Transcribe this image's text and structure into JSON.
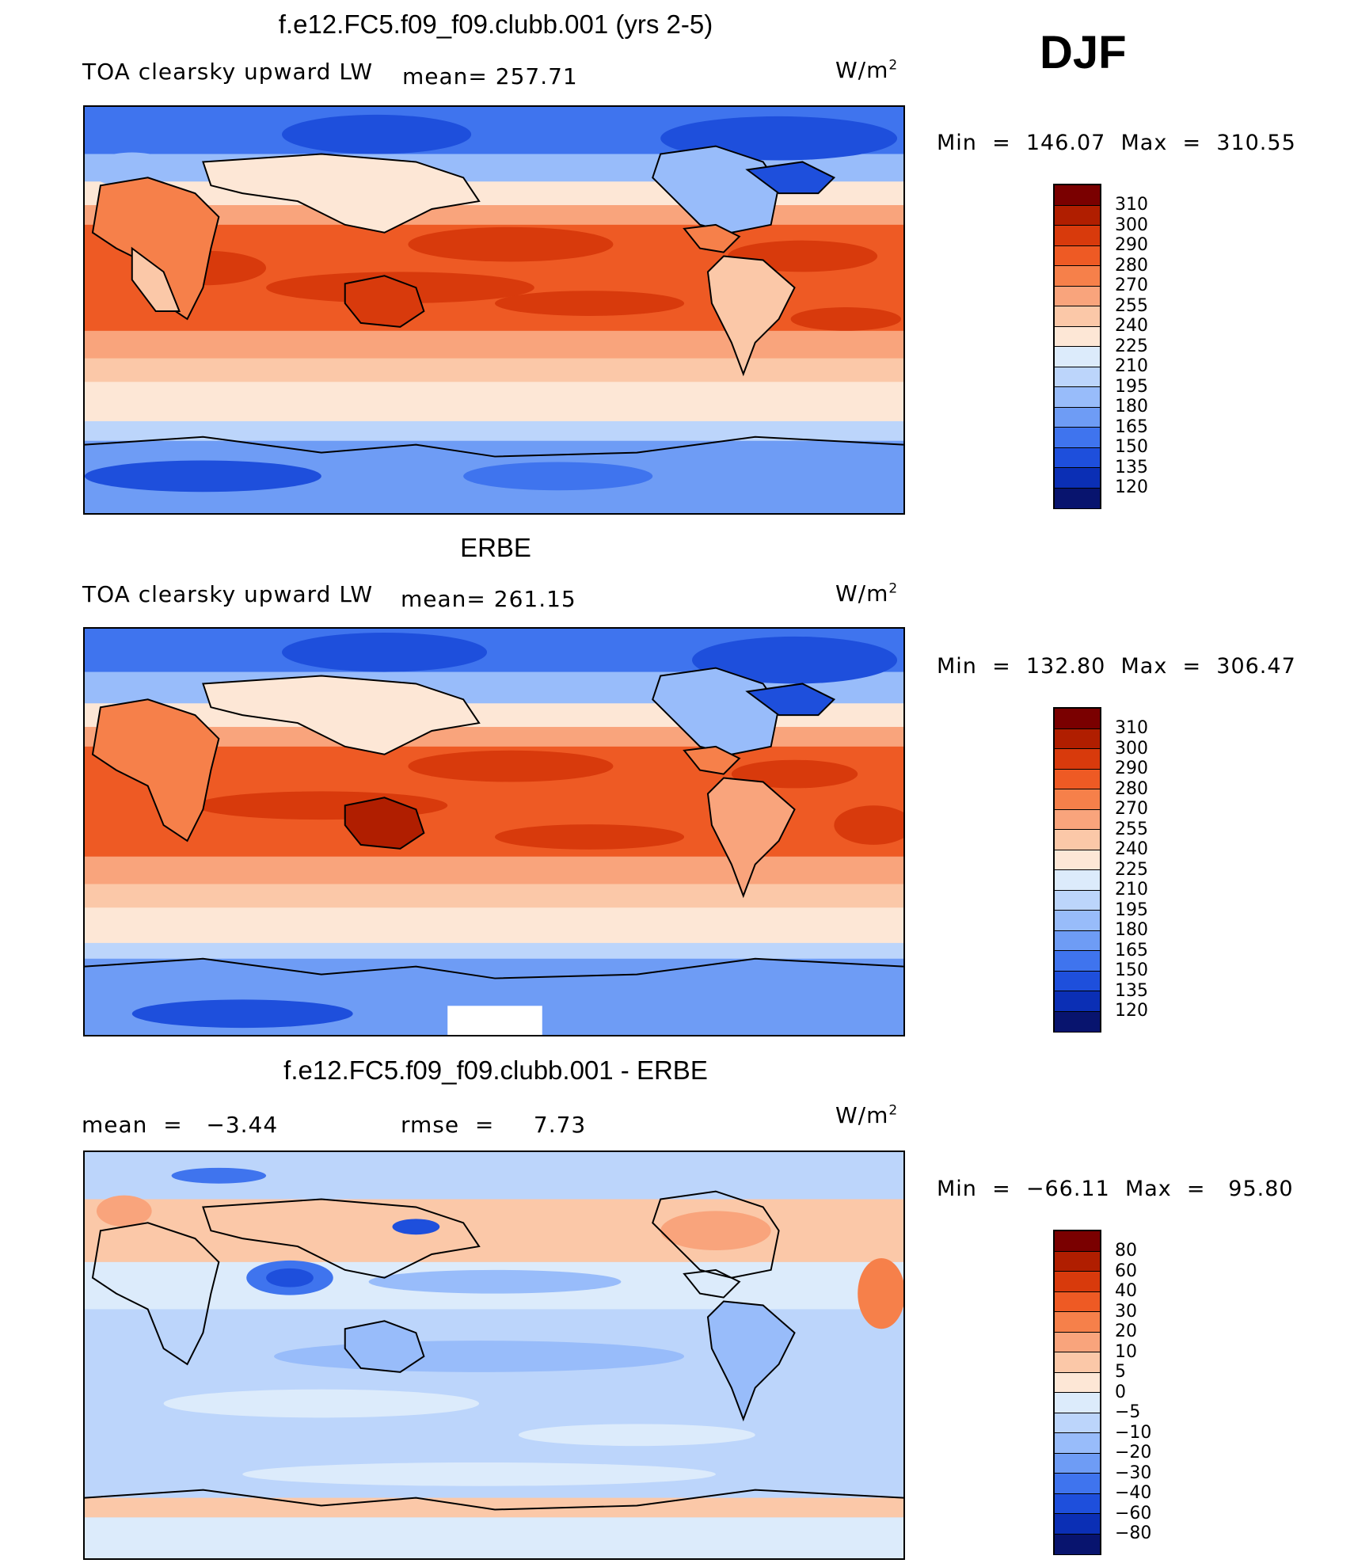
{
  "season": "DJF",
  "panels": [
    {
      "title": "f.e12.FC5.f09_f09.clubb.001 (yrs 2-5)",
      "variable": "TOA clearsky upward LW",
      "stat1": "mean= 257.71",
      "units": "W/m",
      "units_exp": "2",
      "minmax": "Min  =  146.07  Max  =  310.55",
      "colorbar_labels": [
        "310",
        "300",
        "290",
        "280",
        "270",
        "255",
        "240",
        "225",
        "210",
        "195",
        "180",
        "165",
        "150",
        "135",
        "120"
      ]
    },
    {
      "title": "ERBE",
      "variable": "TOA clearsky upward LW",
      "stat1": "mean= 261.15",
      "units": "W/m",
      "units_exp": "2",
      "minmax": "Min  =  132.80  Max  =  306.47",
      "colorbar_labels": [
        "310",
        "300",
        "290",
        "280",
        "270",
        "255",
        "240",
        "225",
        "210",
        "195",
        "180",
        "165",
        "150",
        "135",
        "120"
      ]
    },
    {
      "title": "f.e12.FC5.f09_f09.clubb.001 - ERBE",
      "stat1": "mean  =   −3.44",
      "stat2": "rmse  =     7.73",
      "units": "W/m",
      "units_exp": "2",
      "minmax": "Min  =  −66.11  Max  =   95.80",
      "colorbar_labels": [
        "80",
        "60",
        "40",
        "30",
        "20",
        "10",
        "5",
        "0",
        "−5",
        "−10",
        "−20",
        "−30",
        "−40",
        "−60",
        "−80"
      ]
    }
  ],
  "colormap": [
    "#7a0000",
    "#b01e00",
    "#d83a0c",
    "#ee5a24",
    "#f6804a",
    "#f9a47c",
    "#fbc8a8",
    "#fde7d6",
    "#dcebfb",
    "#bcd5fb",
    "#98bcfa",
    "#6e9cf5",
    "#3f74ee",
    "#1e4fdc",
    "#0b2fb5",
    "#08146e"
  ],
  "colors": {
    "warm_high": "#d83a0c",
    "warm_mid": "#ee5a24",
    "warm_low": "#fbc8a8",
    "cool_low": "#dcebfb",
    "cool_mid": "#6e9cf5",
    "cool_high": "#1e4fdc"
  }
}
